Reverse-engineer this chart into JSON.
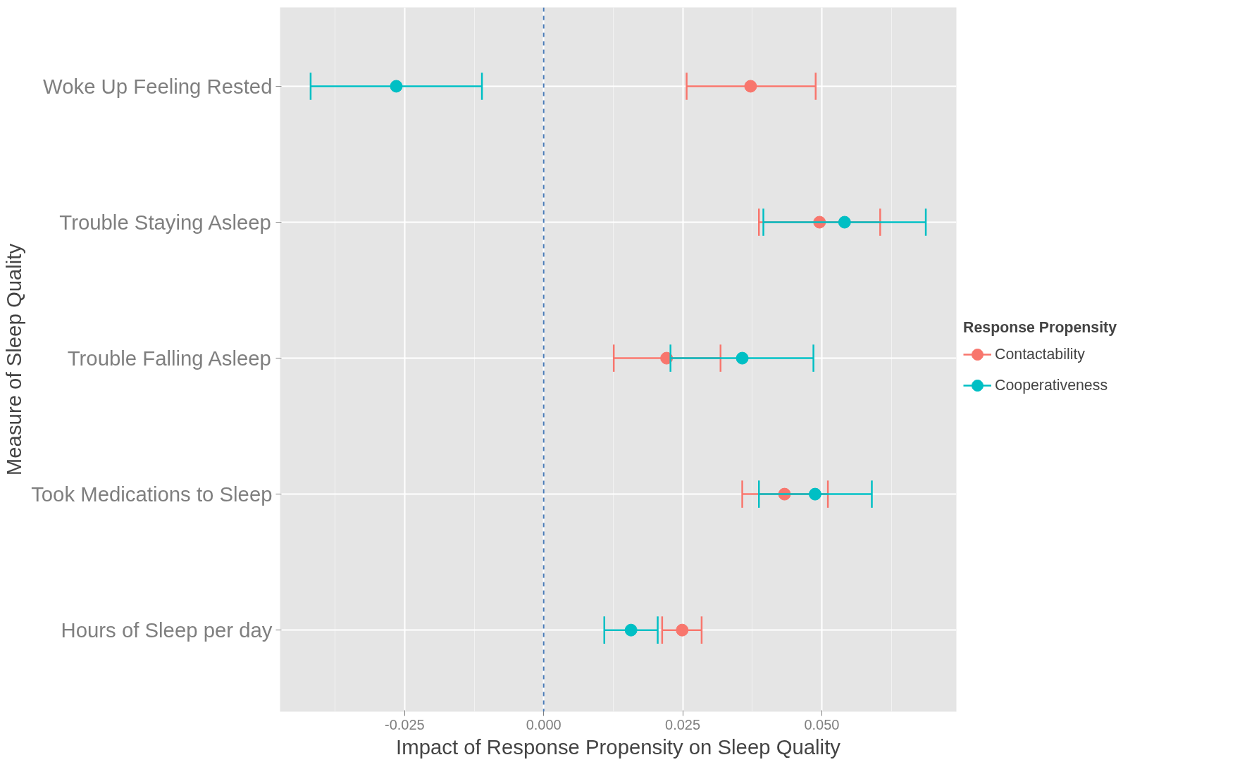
{
  "chart_data": {
    "type": "scatter",
    "xlabel": "Impact of Response Propensity on Sleep Quality",
    "ylabel": "Measure of Sleep Quality",
    "legend_title": "Response Propensity",
    "categories": [
      "Woke Up Feeling Rested",
      "Trouble Staying Asleep",
      "Trouble Falling Asleep",
      "Took Medications to Sleep",
      "Hours of Sleep per day"
    ],
    "series": [
      {
        "name": "Contactability",
        "color": "#f8766d",
        "values": [
          0.0372,
          0.0496,
          0.0221,
          0.0433,
          0.0249
        ],
        "errors": [
          [
            0.0257,
            0.0489
          ],
          [
            0.0387,
            0.0605
          ],
          [
            0.0126,
            0.0318
          ],
          [
            0.0357,
            0.0511
          ],
          [
            0.0213,
            0.0284
          ]
        ]
      },
      {
        "name": "Cooperativeness",
        "color": "#00bfc4",
        "values": [
          -0.0265,
          0.0541,
          0.0357,
          0.0488,
          0.0157
        ],
        "errors": [
          [
            -0.0419,
            -0.0111
          ],
          [
            0.0395,
            0.0687
          ],
          [
            0.0228,
            0.0485
          ],
          [
            0.0387,
            0.059
          ],
          [
            0.0109,
            0.0205
          ]
        ]
      }
    ],
    "orientation": "horizontal",
    "xlim": [
      -0.0474,
      0.0742
    ],
    "xticks": [
      {
        "value": -0.025,
        "label": "-0.025"
      },
      {
        "value": 0,
        "label": "0.000"
      },
      {
        "value": 0.025,
        "label": "0.025"
      },
      {
        "value": 0.05,
        "label": "0.050"
      }
    ],
    "ref_lines": [
      {
        "axis": "x",
        "value": 0,
        "color": "#4a7bb7",
        "line_style": "dashed"
      }
    ],
    "grid": true,
    "legend": "right",
    "marker": "circle"
  }
}
